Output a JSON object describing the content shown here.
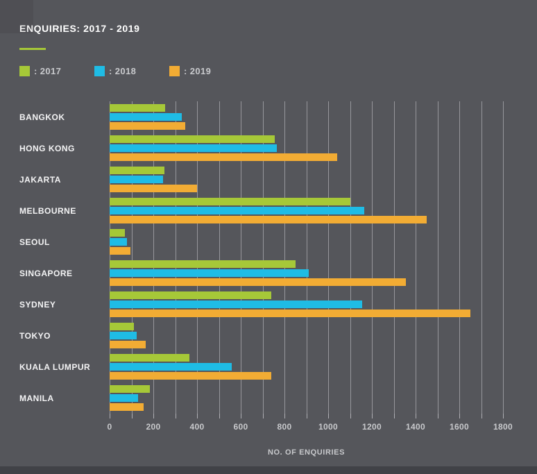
{
  "header": {
    "title": "ENQUIRIES: 2017 - 2019"
  },
  "legend": [
    {
      "label": ": 2017",
      "series": "2017",
      "color": "#A6C838"
    },
    {
      "label": ": 2018",
      "series": "2018",
      "color": "#1FBCE5"
    },
    {
      "label": ": 2019",
      "series": "2019",
      "color": "#F2AC34"
    }
  ],
  "chart_data": {
    "type": "bar",
    "orientation": "horizontal",
    "title": "ENQUIRIES: 2017 - 2019",
    "xlabel": "NO. OF ENQUIRIES",
    "ylabel": "",
    "categories": [
      "BANGKOK",
      "HONG KONG",
      "JAKARTA",
      "MELBOURNE",
      "SEOUL",
      "SINGAPORE",
      "SYDNEY",
      "TOKYO",
      "KUALA LUMPUR",
      "MANILA"
    ],
    "series": [
      {
        "name": "2017",
        "color": "#A6C838",
        "values": [
          255,
          755,
          250,
          1100,
          70,
          850,
          740,
          110,
          365,
          185
        ]
      },
      {
        "name": "2018",
        "color": "#1FBCE5",
        "values": [
          330,
          765,
          245,
          1165,
          80,
          910,
          1155,
          125,
          560,
          130
        ]
      },
      {
        "name": "2019",
        "color": "#F2AC34",
        "values": [
          345,
          1040,
          400,
          1450,
          95,
          1355,
          1650,
          165,
          740,
          155
        ]
      }
    ],
    "xlim": [
      0,
      1800
    ],
    "x_tick_minor_step": 100,
    "x_tick_label_step": 200,
    "x_tick_labels": [
      "0",
      "200",
      "400",
      "600",
      "800",
      "1000",
      "1200",
      "1400",
      "1600",
      "1800"
    ],
    "grid": true,
    "legend_position": "top-left"
  },
  "colors": {
    "background": "#55565B",
    "bottom_strip": "#414247",
    "title_text": "#FFFFFF",
    "muted_text": "#C8C9CC",
    "category_text": "#F4F4F5",
    "gridline": "#CDCED2",
    "accent_green": "#A6C838",
    "accent_cyan": "#1FBCE5",
    "accent_orange": "#F2AC34"
  }
}
